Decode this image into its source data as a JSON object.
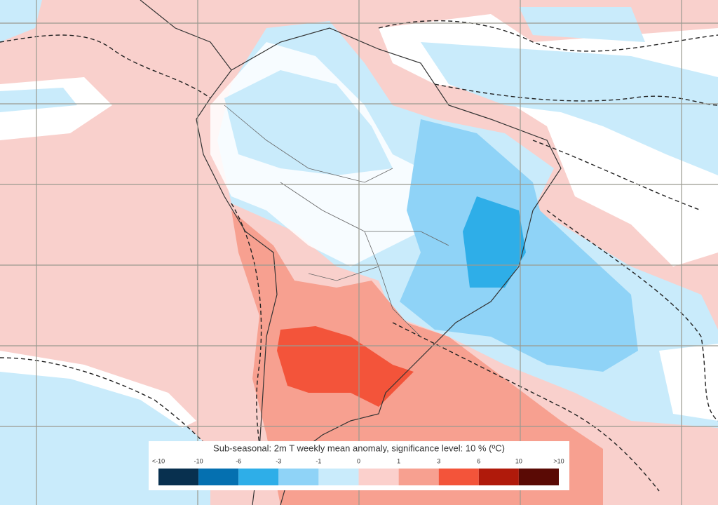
{
  "legend": {
    "title": "Sub-seasonal: 2m T weekly mean anomaly, significance level: 10 % (ºC)",
    "labels": [
      "<-10",
      "-10",
      "-6",
      "-3",
      "-1",
      "0",
      "1",
      "3",
      "6",
      "10",
      ">10"
    ],
    "colors": [
      "#08304f",
      "#0570b0",
      "#2eaee8",
      "#8fd3f7",
      "#c9ebfb",
      "#fbd0cc",
      "#f7a090",
      "#f3543a",
      "#b01a0b",
      "#5a0a05"
    ]
  }
}
